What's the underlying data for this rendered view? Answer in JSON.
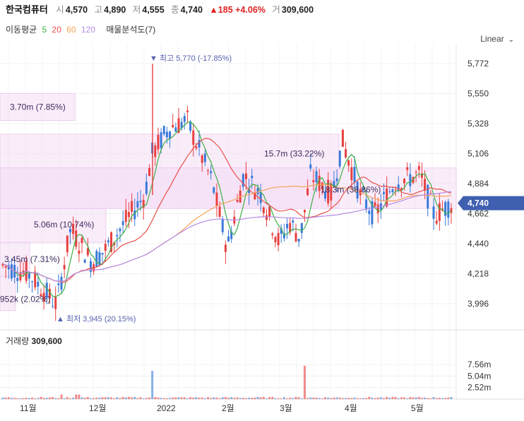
{
  "header": {
    "name": "한국컴퓨터",
    "open_label": "시",
    "open": "4,570",
    "high_label": "고",
    "high": "4,890",
    "low_label": "저",
    "low": "4,555",
    "close_label": "종",
    "close": "4,740",
    "change": "▲185",
    "change_pct": "+4.06%",
    "volume_label": "거",
    "volume": "309,600"
  },
  "ma_legend": {
    "label": "이동평균",
    "p5": "5",
    "p20": "20",
    "p60": "60",
    "p120": "120",
    "vp_label": "매물분석도(7)"
  },
  "scale_menu": {
    "label": "Linear",
    "chevron": "chevron-down-icon"
  },
  "volume_panel": {
    "label": "거래량",
    "value": "309,600"
  },
  "chart_data": {
    "type": "candlestick",
    "price_ticks": [
      "5,772",
      "5,550",
      "5,328",
      "5,106",
      "4,884",
      "4,662",
      "4,440",
      "4,218",
      "3,996"
    ],
    "current_price": "4,740",
    "volume_ticks": [
      "7.56m",
      "5.04m",
      "2.52m"
    ],
    "x_labels": [
      "11월",
      "12월",
      "2022",
      "2월",
      "3월",
      "4월",
      "5월"
    ],
    "annotations": {
      "high": "최고 5,770 (-17.85%)",
      "low": "최저 3,945 (20.15%)",
      "high_marker": "▼",
      "low_marker": "▲"
    },
    "volume_profile": [
      {
        "label": "3.70m (7.85%)",
        "price_from": 5350,
        "price_to": 5550
      },
      {
        "label": "15.7m (33.22%)",
        "price_from": 4700,
        "price_to": 5250
      },
      {
        "label": "18.3m (38.86%)",
        "price_from": 4700,
        "price_to": 5000
      },
      {
        "label": "5.06m (10.74%)",
        "price_from": 4450,
        "price_to": 4700
      },
      {
        "label": "3.45m (7.31%)",
        "price_from": 4200,
        "price_to": 4450
      },
      {
        "label": "952k (2.02%)",
        "price_from": 3945,
        "price_to": 4200
      }
    ],
    "colors": {
      "up": "#e84040",
      "down": "#3a7ad9",
      "ma5": "#3cb043",
      "ma20": "#e8504a",
      "ma60": "#f5a55a",
      "ma120": "#b58ae8",
      "profile": "#f3d6f5",
      "current": "#3f5fb0"
    }
  }
}
